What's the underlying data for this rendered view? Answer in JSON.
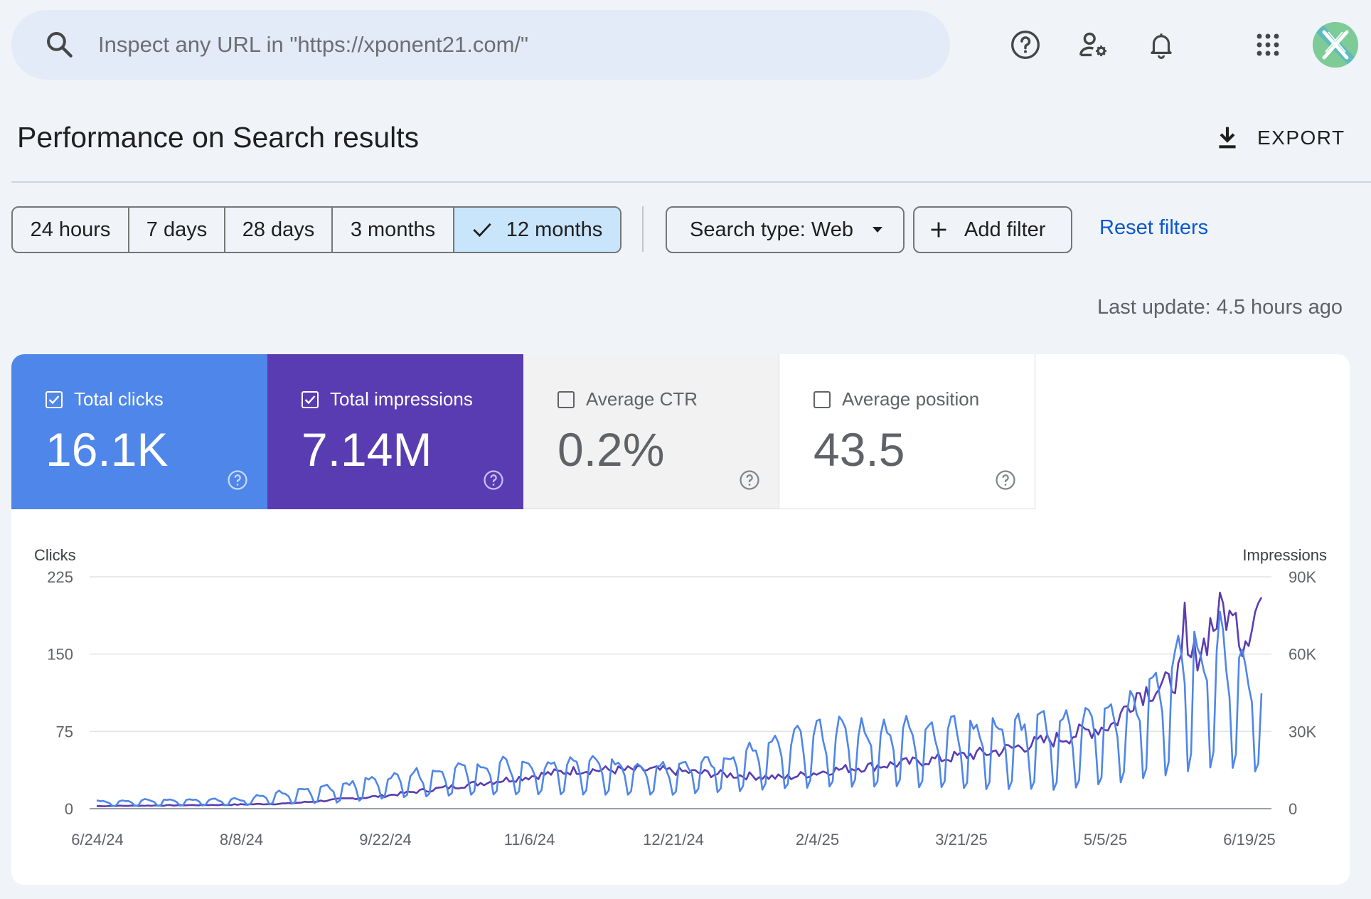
{
  "search": {
    "placeholder": "Inspect any URL in \"https://xponent21.com/\""
  },
  "header": {
    "title": "Performance on Search results",
    "export_label": "EXPORT",
    "last_update": "Last update: 4.5 hours ago"
  },
  "top_icons": [
    "search-icon",
    "help-icon",
    "manage-users-icon",
    "notifications-icon",
    "apps-grid-icon"
  ],
  "filters": {
    "ranges": [
      "24 hours",
      "7 days",
      "28 days",
      "3 months",
      "12 months"
    ],
    "selected_range": "12 months",
    "search_type": "Search type: Web",
    "add_filter": "Add filter",
    "reset": "Reset filters"
  },
  "metrics": [
    {
      "label": "Total clicks",
      "value": "16.1K",
      "checked": true,
      "color": "#4f86e9"
    },
    {
      "label": "Total impressions",
      "value": "7.14M",
      "checked": true,
      "color": "#5a3cb2"
    },
    {
      "label": "Average CTR",
      "value": "0.2%",
      "checked": false
    },
    {
      "label": "Average position",
      "value": "43.5",
      "checked": false
    }
  ],
  "colors": {
    "clicks": "#4f86e9",
    "impressions": "#5a3cb2",
    "accent": "#0b57d0",
    "selected_range_bg": "#c9e5fb"
  },
  "chart_data": {
    "type": "line",
    "ylabel_left": "Clicks",
    "ylabel_right": "Impressions",
    "left_ticks": [
      "225",
      "150",
      "75",
      "0"
    ],
    "right_ticks": [
      "90K",
      "60K",
      "30K",
      "0"
    ],
    "ylim_left": [
      0,
      225
    ],
    "ylim_right": [
      0,
      90000
    ],
    "x_ticks": [
      "6/24/24",
      "8/8/24",
      "9/22/24",
      "11/6/24",
      "12/21/24",
      "2/4/25",
      "3/21/25",
      "5/5/25",
      "6/19/25"
    ],
    "x_range": [
      "6/24/24",
      "6/23/25"
    ],
    "grid": true,
    "series": [
      {
        "name": "Clicks",
        "axis": "left",
        "color": "#4f86e9",
        "weekly_pattern": true,
        "weekday_anchors": [
          [
            0,
            8
          ],
          [
            45,
            10
          ],
          [
            75,
            25
          ],
          [
            95,
            35
          ],
          [
            120,
            45
          ],
          [
            150,
            48
          ],
          [
            180,
            45
          ],
          [
            200,
            55
          ],
          [
            225,
            82
          ],
          [
            255,
            85
          ],
          [
            280,
            87
          ],
          [
            300,
            90
          ],
          [
            320,
            100
          ],
          [
            330,
            130
          ],
          [
            340,
            165
          ],
          [
            350,
            175
          ],
          [
            360,
            150
          ],
          [
            364,
            120
          ]
        ],
        "weekend_anchors": [
          [
            0,
            2
          ],
          [
            45,
            3
          ],
          [
            75,
            5
          ],
          [
            95,
            10
          ],
          [
            120,
            12
          ],
          [
            150,
            12
          ],
          [
            180,
            12
          ],
          [
            200,
            15
          ],
          [
            225,
            18
          ],
          [
            255,
            18
          ],
          [
            280,
            15
          ],
          [
            300,
            15
          ],
          [
            320,
            22
          ],
          [
            330,
            25
          ],
          [
            340,
            30
          ],
          [
            350,
            35
          ],
          [
            360,
            32
          ],
          [
            364,
            30
          ]
        ]
      },
      {
        "name": "Impressions",
        "axis": "right",
        "color": "#5a3cb2",
        "anchors": [
          [
            0,
            1000
          ],
          [
            40,
            1500
          ],
          [
            60,
            2000
          ],
          [
            90,
            5000
          ],
          [
            120,
            10000
          ],
          [
            150,
            15000
          ],
          [
            175,
            15000
          ],
          [
            200,
            13000
          ],
          [
            215,
            12000
          ],
          [
            230,
            15000
          ],
          [
            255,
            18000
          ],
          [
            280,
            22000
          ],
          [
            300,
            27000
          ],
          [
            318,
            33000
          ],
          [
            325,
            45000
          ],
          [
            335,
            48000
          ],
          [
            345,
            62000
          ],
          [
            352,
            78000
          ],
          [
            358,
            65000
          ],
          [
            364,
            82000
          ]
        ],
        "peaks": [
          [
            340,
            80000
          ],
          [
            348,
            74000
          ],
          [
            356,
            76000
          ],
          [
            364,
            82000
          ]
        ]
      }
    ]
  }
}
